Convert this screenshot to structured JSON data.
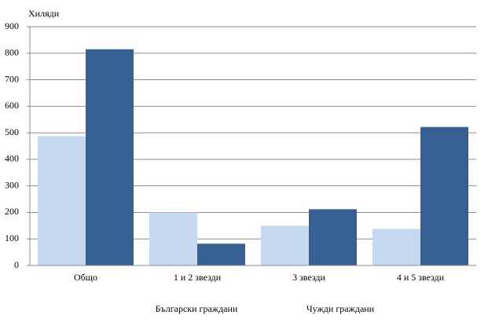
{
  "chart_data": {
    "type": "bar",
    "y_label": "Хиляди",
    "categories": [
      "Общо",
      "1 и 2 звезди",
      "3 звезди",
      "4 и 5 звезди"
    ],
    "series": [
      {
        "name": "Български граждани",
        "color": "#c6d9f1",
        "values": [
          487,
          200,
          150,
          138
        ]
      },
      {
        "name": "Чужди граждани",
        "color": "#366092",
        "values": [
          815,
          82,
          212,
          522
        ]
      }
    ],
    "ylim": [
      0,
      900
    ],
    "yticks": [
      0,
      100,
      200,
      300,
      400,
      500,
      600,
      700,
      800,
      900
    ],
    "grid": true,
    "legend": "bottom"
  }
}
